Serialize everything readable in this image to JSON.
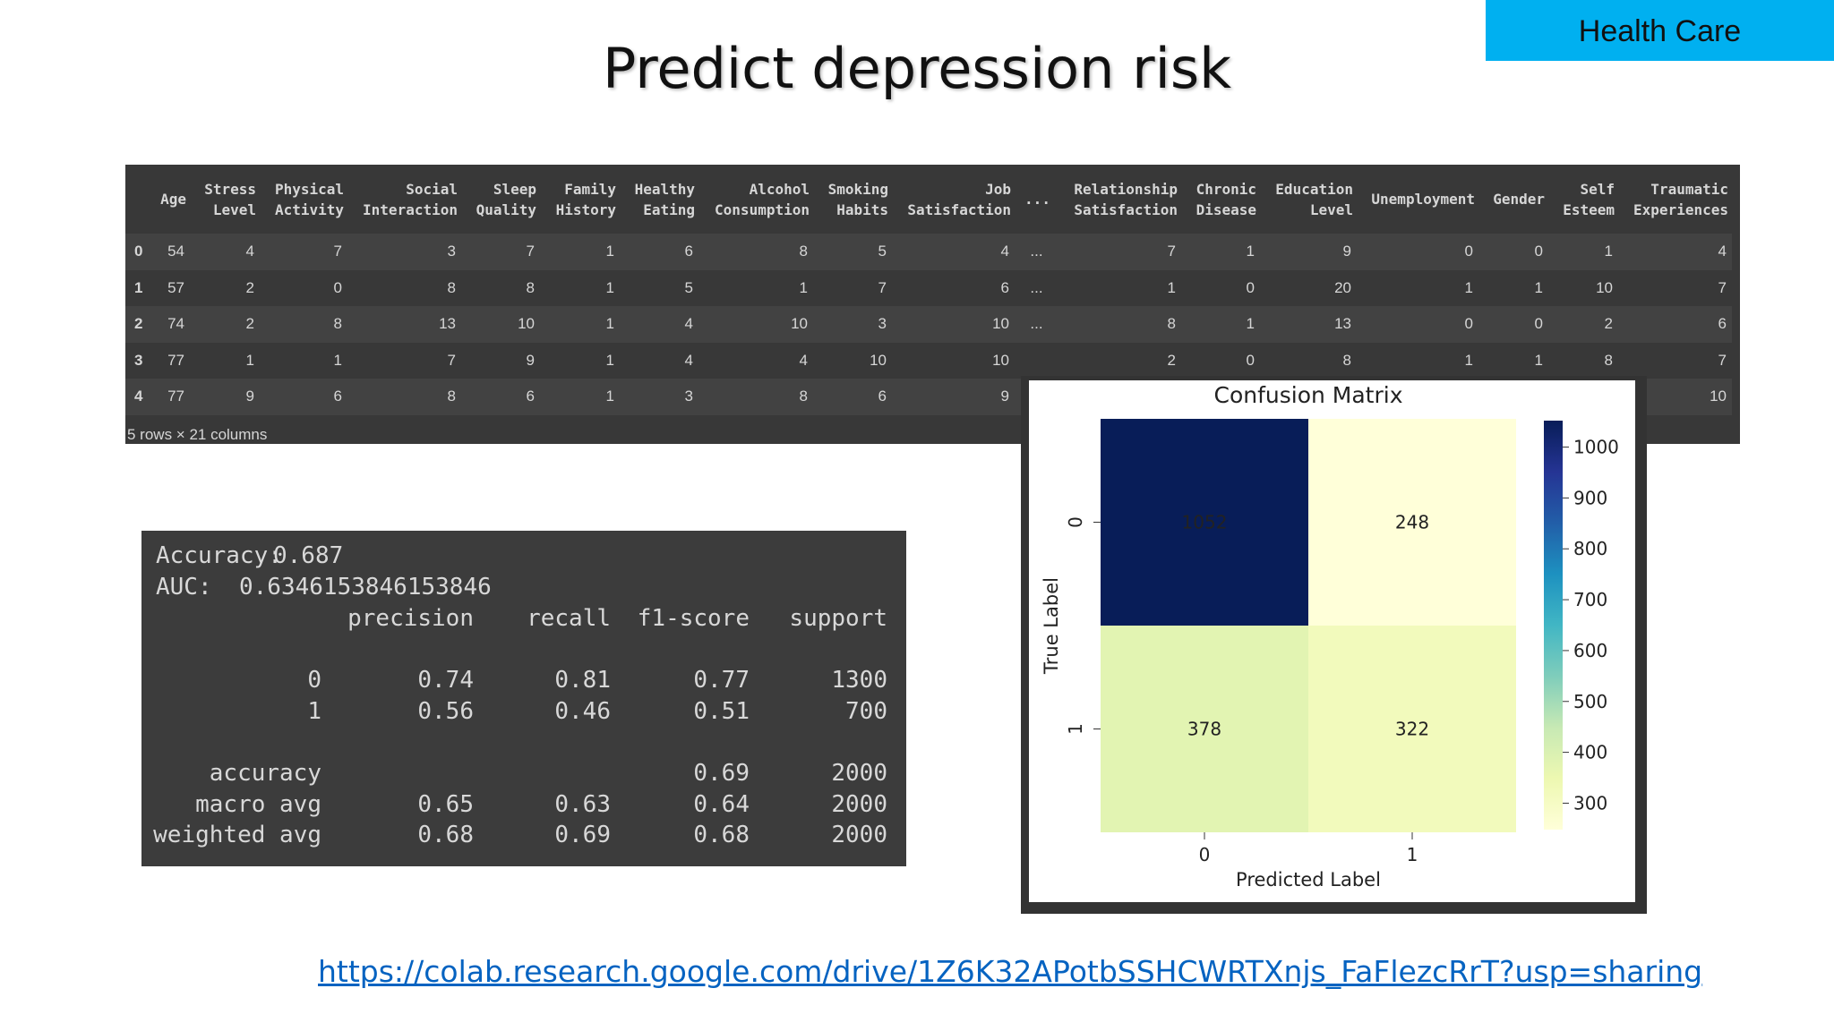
{
  "tag": "Health Care",
  "title": "Predict depression risk",
  "table": {
    "columns": [
      "Age",
      "Stress Level",
      "Physical Activity",
      "Social Interaction",
      "Sleep Quality",
      "Family History",
      "Healthy Eating",
      "Alcohol Consumption",
      "Smoking Habits",
      "Job Satisfaction",
      "...",
      "Relationship Satisfaction",
      "Chronic Disease",
      "Education Level",
      "Unemployment",
      "Gender",
      "Self Esteem",
      "Traumatic Experiences"
    ],
    "index": [
      "0",
      "1",
      "2",
      "3",
      "4"
    ],
    "rows": [
      [
        54,
        4,
        7,
        3,
        7,
        1,
        6,
        8,
        5,
        4,
        "...",
        7,
        1,
        9,
        0,
        0,
        1,
        4
      ],
      [
        57,
        2,
        0,
        8,
        8,
        1,
        5,
        1,
        7,
        6,
        "...",
        1,
        0,
        20,
        1,
        1,
        10,
        7
      ],
      [
        74,
        2,
        8,
        13,
        10,
        1,
        4,
        10,
        3,
        10,
        "...",
        8,
        1,
        13,
        0,
        0,
        2,
        6
      ],
      [
        77,
        1,
        1,
        7,
        9,
        1,
        4,
        4,
        10,
        10,
        null,
        2,
        0,
        8,
        1,
        1,
        8,
        7
      ],
      [
        77,
        9,
        6,
        8,
        6,
        1,
        3,
        8,
        6,
        9,
        null,
        null,
        null,
        null,
        null,
        null,
        null,
        10
      ]
    ],
    "footer": "5 rows × 21 columns"
  },
  "report": {
    "accuracy_label": "Accuracy:",
    "accuracy": "0.687",
    "auc_label": "AUC:",
    "auc": "0.6346153846153846",
    "headers": [
      "precision",
      "recall",
      "f1-score",
      "support"
    ],
    "rows": [
      [
        "0",
        "0.74",
        "0.81",
        "0.77",
        "1300"
      ],
      [
        "1",
        "0.56",
        "0.46",
        "0.51",
        "700"
      ],
      [
        "accuracy",
        null,
        null,
        "0.69",
        "2000"
      ],
      [
        "macro avg",
        "0.65",
        "0.63",
        "0.64",
        "2000"
      ],
      [
        "weighted avg",
        "0.68",
        "0.69",
        "0.68",
        "2000"
      ]
    ]
  },
  "chart_data": {
    "type": "heatmap",
    "title": "Confusion Matrix",
    "x_label": "Predicted Label",
    "y_label": "True Label",
    "x_categories": [
      "0",
      "1"
    ],
    "y_categories": [
      "0",
      "1"
    ],
    "values": [
      [
        1052,
        248
      ],
      [
        378,
        322
      ]
    ],
    "colormap": "YlGnBu",
    "clim": [
      248,
      1052
    ],
    "cbar_ticks": [
      300,
      400,
      500,
      600,
      700,
      800,
      900,
      1000
    ]
  },
  "link": "https://colab.research.google.com/drive/1Z6K32APotbSSHCWRTXnjs_FaFlezcRrT?usp=sharing"
}
